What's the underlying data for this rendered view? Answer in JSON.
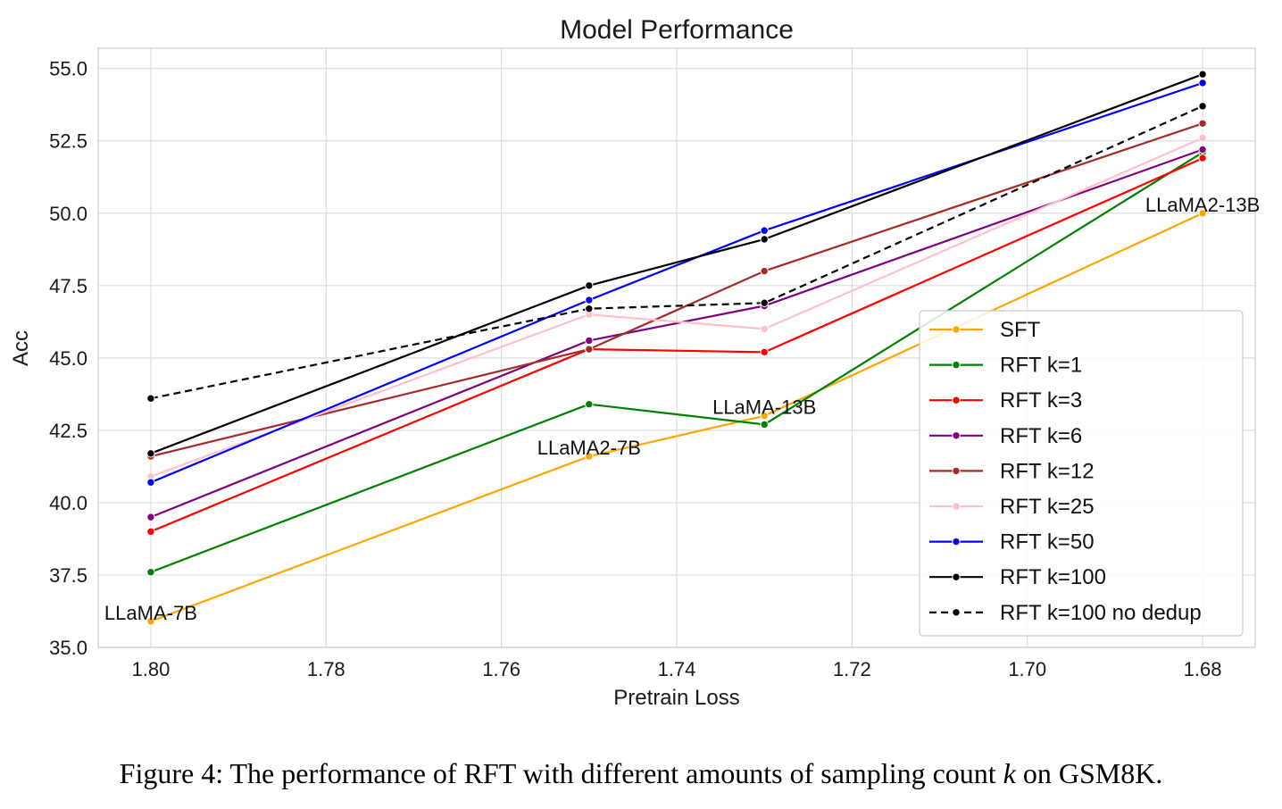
{
  "chart_data": {
    "type": "line",
    "title": "Model Performance",
    "xlabel": "Pretrain Loss",
    "ylabel": "Acc",
    "x": [
      1.8,
      1.75,
      1.73,
      1.68
    ],
    "xlim": [
      1.806,
      1.674
    ],
    "x_inverted": true,
    "xticks": [
      "1.80",
      "1.78",
      "1.76",
      "1.74",
      "1.72",
      "1.70",
      "1.68"
    ],
    "ylim": [
      35.0,
      55.7
    ],
    "yticks": [
      "35.0",
      "37.5",
      "40.0",
      "42.5",
      "45.0",
      "47.5",
      "50.0",
      "52.5",
      "55.0"
    ],
    "grid": true,
    "legend_position": "lower-right",
    "annotations": [
      {
        "text": "LLaMA-7B",
        "x": 1.8,
        "y": 35.9
      },
      {
        "text": "LLaMA2-7B",
        "x": 1.75,
        "y": 41.6
      },
      {
        "text": "LLaMA-13B",
        "x": 1.73,
        "y": 43.0
      },
      {
        "text": "LLaMA2-13B",
        "x": 1.68,
        "y": 50.0
      }
    ],
    "series": [
      {
        "name": "SFT",
        "color": "#ffa500",
        "dash": false,
        "values": [
          35.9,
          41.6,
          43.0,
          50.0
        ]
      },
      {
        "name": "RFT k=1",
        "color": "#008000",
        "dash": false,
        "values": [
          37.6,
          43.4,
          42.7,
          52.1
        ]
      },
      {
        "name": "RFT k=3",
        "color": "#ff0000",
        "dash": false,
        "values": [
          39.0,
          45.3,
          45.2,
          51.9
        ]
      },
      {
        "name": "RFT k=6",
        "color": "#800080",
        "dash": false,
        "values": [
          39.5,
          45.6,
          46.8,
          52.2
        ]
      },
      {
        "name": "RFT k=12",
        "color": "#a52a2a",
        "dash": false,
        "values": [
          41.6,
          45.3,
          48.0,
          53.1
        ]
      },
      {
        "name": "RFT k=25",
        "color": "#ffc0cb",
        "dash": false,
        "values": [
          40.9,
          46.5,
          46.0,
          52.6
        ]
      },
      {
        "name": "RFT k=50",
        "color": "#0000ff",
        "dash": false,
        "values": [
          40.7,
          47.0,
          49.4,
          54.5
        ]
      },
      {
        "name": "RFT k=100",
        "color": "#000000",
        "dash": false,
        "values": [
          41.7,
          47.5,
          49.1,
          54.8
        ]
      },
      {
        "name": "RFT k=100 no dedup",
        "color": "#000000",
        "dash": true,
        "values": [
          43.6,
          46.7,
          46.9,
          53.7
        ]
      }
    ]
  },
  "caption": {
    "prefix": "Figure 4: The performance of RFT with different amounts of sampling count ",
    "variable": "k",
    "suffix": " on GSM8K."
  }
}
